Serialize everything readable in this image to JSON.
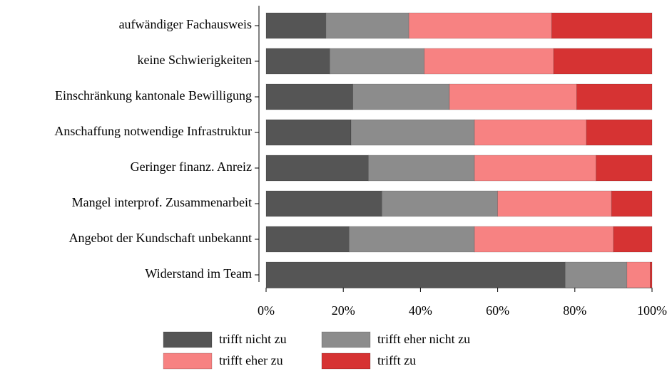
{
  "chart_data": {
    "type": "stacked_barh",
    "categories": [
      "aufwändiger Fachausweis",
      "keine Schwierigkeiten",
      "Einschränkung kantonale Bewilligung",
      "Anschaffung notwendige Infrastruktur",
      "Geringer finanz. Anreiz",
      "Mangel interprof. Zusammenarbeit",
      "Angebot der Kundschaft unbekannt",
      "Widerstand im Team"
    ],
    "series": [
      {
        "name": "trifft nicht zu",
        "color": "#555555",
        "values": [
          15.5,
          16.5,
          22.5,
          22,
          26.5,
          30,
          21.5,
          77.5
        ]
      },
      {
        "name": "trifft eher nicht zu",
        "color": "#8c8c8c",
        "values": [
          21.5,
          24.5,
          25,
          32,
          27.5,
          30,
          32.5,
          16
        ]
      },
      {
        "name": "trifft eher zu",
        "color": "#f78282",
        "values": [
          37,
          33.5,
          33,
          29,
          31.5,
          29.5,
          36,
          6
        ]
      },
      {
        "name": "trifft zu",
        "color": "#d63333",
        "values": [
          26,
          25.5,
          19.5,
          17,
          14.5,
          10.5,
          10,
          0.5
        ]
      }
    ],
    "xlim": [
      0,
      100
    ],
    "xticks": [
      {
        "value": 0,
        "label": "0%"
      },
      {
        "value": 20,
        "label": "20%"
      },
      {
        "value": 40,
        "label": "40%"
      },
      {
        "value": 60,
        "label": "60%"
      },
      {
        "value": 80,
        "label": "80%"
      },
      {
        "value": 100,
        "label": "100%"
      }
    ]
  }
}
